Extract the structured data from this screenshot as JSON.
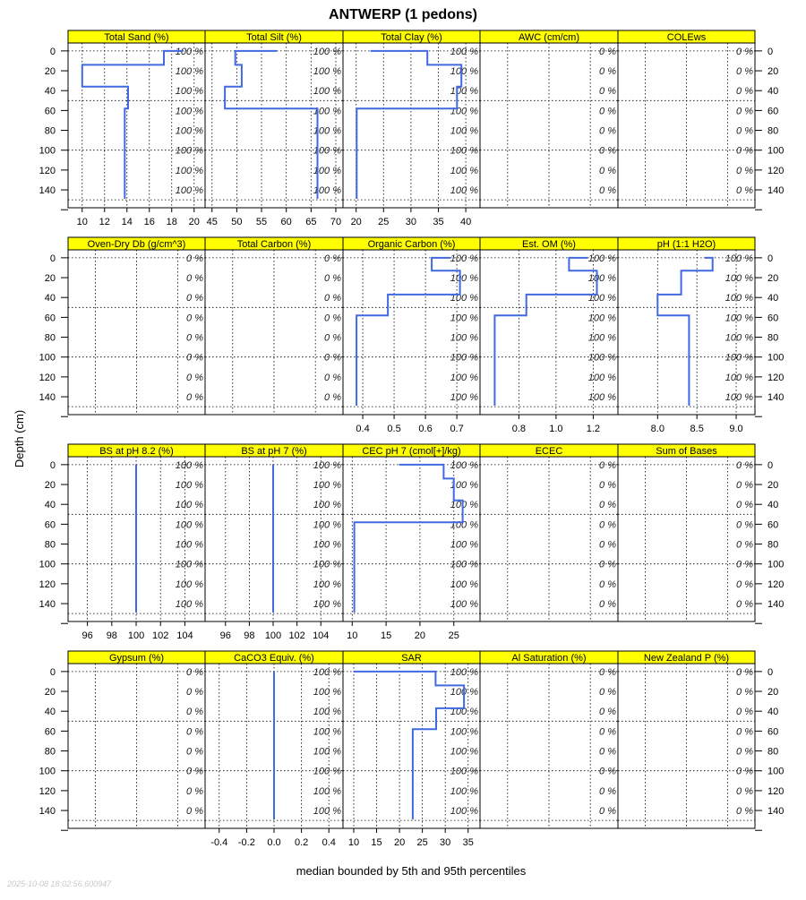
{
  "title": "ANTWERP (1 pedons)",
  "ylabel": "Depth (cm)",
  "xlabel": "median bounded by 5th and 95th percentiles",
  "timestamp": "2025-10-08 18:02:56.600947",
  "colors": {
    "line": "#4169E1",
    "strip": "#FFFF00",
    "grid": "#000000"
  },
  "chart_data": {
    "type": "line",
    "title": "ANTWERP (1 pedons)",
    "ylabel": "Depth (cm)",
    "xlabel": "median bounded by 5th and 95th percentiles",
    "ylim": [
      158,
      -8
    ],
    "depth_ticks": [
      0,
      20,
      40,
      60,
      80,
      100,
      120,
      140
    ],
    "depth_grid": [
      0,
      50,
      100,
      150
    ],
    "panels": [
      {
        "name": "Total Sand (%)",
        "coverage": "100 %",
        "xlim": [
          8.74,
          20.98
        ],
        "ticks": [
          "10",
          "12",
          "14",
          "16",
          "18",
          "20"
        ],
        "profile": [
          [
            19,
            0
          ],
          [
            17.3,
            0
          ],
          [
            17.3,
            14
          ],
          [
            10,
            14
          ],
          [
            10,
            36
          ],
          [
            14.1,
            36
          ],
          [
            14.1,
            58
          ],
          [
            13.8,
            58
          ],
          [
            13.8,
            149
          ]
        ]
      },
      {
        "name": "Total Silt (%)",
        "coverage": "100 %",
        "xlim": [
          43.6,
          71.45
        ],
        "ticks": [
          "45",
          "50",
          "55",
          "60",
          "65",
          "70"
        ],
        "profile": [
          [
            58.1,
            0
          ],
          [
            49.7,
            0
          ],
          [
            49.7,
            14
          ],
          [
            51,
            14
          ],
          [
            51,
            36
          ],
          [
            47.6,
            36
          ],
          [
            47.6,
            58
          ],
          [
            66.3,
            58
          ],
          [
            66.3,
            149
          ]
        ]
      },
      {
        "name": "Total Clay (%)",
        "coverage": "100 %",
        "xlim": [
          17.6,
          42.6
        ],
        "ticks": [
          "20",
          "25",
          "30",
          "35",
          "40"
        ],
        "profile": [
          [
            22.6,
            0
          ],
          [
            33,
            0
          ],
          [
            33,
            14
          ],
          [
            39.2,
            14
          ],
          [
            39.2,
            36
          ],
          [
            38.4,
            36
          ],
          [
            38.4,
            58
          ],
          [
            20.1,
            58
          ],
          [
            20.1,
            149
          ]
        ]
      },
      {
        "name": "AWC (cm/cm)",
        "coverage": "0 %",
        "xlim": [
          0,
          1
        ],
        "ticks": [],
        "profile": []
      },
      {
        "name": "COLEws",
        "coverage": "0 %",
        "xlim": [
          0,
          1
        ],
        "ticks": [],
        "profile": []
      },
      {
        "name": "Oven-Dry Db (g/cm^3)",
        "coverage": "0 %",
        "xlim": [
          0,
          1
        ],
        "ticks": [],
        "profile": []
      },
      {
        "name": "Total Carbon (%)",
        "coverage": "0 %",
        "xlim": [
          0,
          1
        ],
        "ticks": [],
        "profile": []
      },
      {
        "name": "Organic Carbon (%)",
        "coverage": "100 %",
        "xlim": [
          0.337,
          0.774
        ],
        "ticks": [
          "0.4",
          "0.5",
          "0.6",
          "0.7"
        ],
        "profile": [
          [
            0.68,
            0
          ],
          [
            0.62,
            0
          ],
          [
            0.62,
            13
          ],
          [
            0.71,
            13
          ],
          [
            0.71,
            37
          ],
          [
            0.48,
            37
          ],
          [
            0.48,
            58
          ],
          [
            0.38,
            58
          ],
          [
            0.38,
            149
          ]
        ]
      },
      {
        "name": "Est. OM (%)",
        "coverage": "100 %",
        "xlim": [
          0.591,
          1.333
        ],
        "ticks": [
          "0.8",
          "1.0",
          "1.2"
        ],
        "profile": [
          [
            1.17,
            0
          ],
          [
            1.07,
            0
          ],
          [
            1.07,
            13
          ],
          [
            1.22,
            13
          ],
          [
            1.22,
            37
          ],
          [
            0.84,
            37
          ],
          [
            0.84,
            58
          ],
          [
            0.67,
            58
          ],
          [
            0.67,
            149
          ]
        ]
      },
      {
        "name": "pH (1:1 H2O)",
        "coverage": "100 %",
        "xlim": [
          7.495,
          9.239
        ],
        "ticks": [
          "8.0",
          "8.5",
          "9.0"
        ],
        "profile": [
          [
            8.6,
            0
          ],
          [
            8.7,
            0
          ],
          [
            8.7,
            13
          ],
          [
            8.3,
            13
          ],
          [
            8.3,
            37
          ],
          [
            8.0,
            37
          ],
          [
            8.0,
            58
          ],
          [
            8.4,
            58
          ],
          [
            8.4,
            149
          ]
        ]
      },
      {
        "name": "BS at pH 8.2 (%)",
        "coverage": "100 %",
        "xlim": [
          94.41,
          105.66
        ],
        "ticks": [
          "96",
          "98",
          "100",
          "102",
          "104"
        ],
        "profile": [
          [
            100,
            0
          ],
          [
            100,
            149
          ]
        ]
      },
      {
        "name": "BS at pH 7 (%)",
        "coverage": "100 %",
        "xlim": [
          94.29,
          105.86
        ],
        "ticks": [
          "96",
          "98",
          "100",
          "102",
          "104"
        ],
        "profile": [
          [
            100,
            0
          ],
          [
            100,
            149
          ]
        ]
      },
      {
        "name": "CEC pH 7 (cmol[+]/kg)",
        "coverage": "100 %",
        "xlim": [
          8.64,
          28.87
        ],
        "ticks": [
          "10",
          "15",
          "20",
          "25"
        ],
        "profile": [
          [
            16.9,
            0
          ],
          [
            23.5,
            0
          ],
          [
            23.5,
            14
          ],
          [
            25,
            14
          ],
          [
            25,
            36
          ],
          [
            26.3,
            36
          ],
          [
            26.3,
            58
          ],
          [
            10.3,
            58
          ],
          [
            10.3,
            149
          ]
        ]
      },
      {
        "name": "ECEC",
        "coverage": "0 %",
        "xlim": [
          0,
          1
        ],
        "ticks": [],
        "profile": []
      },
      {
        "name": "Sum of Bases",
        "coverage": "0 %",
        "xlim": [
          0,
          1
        ],
        "ticks": [],
        "profile": []
      },
      {
        "name": "Gypsum (%)",
        "coverage": "0 %",
        "xlim": [
          0,
          1
        ],
        "ticks": [],
        "profile": []
      },
      {
        "name": "CaCO3 Equiv. (%)",
        "coverage": "100 %",
        "xlim": [
          -0.503,
          0.503
        ],
        "ticks": [
          "-0.4",
          "-0.2",
          "0.0",
          "0.2",
          "0.4"
        ],
        "profile": [
          [
            0,
            0
          ],
          [
            0,
            149
          ]
        ]
      },
      {
        "name": "SAR",
        "coverage": "100 %",
        "xlim": [
          7.65,
          37.6
        ],
        "ticks": [
          "10",
          "15",
          "20",
          "25",
          "30",
          "35"
        ],
        "profile": [
          [
            10,
            0
          ],
          [
            27.9,
            0
          ],
          [
            27.9,
            14
          ],
          [
            34.1,
            14
          ],
          [
            34.1,
            37
          ],
          [
            28,
            37
          ],
          [
            28,
            58
          ],
          [
            22.9,
            58
          ],
          [
            22.9,
            149
          ]
        ]
      },
      {
        "name": "Al Saturation (%)",
        "coverage": "0 %",
        "xlim": [
          0,
          1
        ],
        "ticks": [],
        "profile": []
      },
      {
        "name": "New Zealand P (%)",
        "coverage": "0 %",
        "xlim": [
          0,
          1
        ],
        "ticks": [],
        "profile": []
      }
    ]
  }
}
